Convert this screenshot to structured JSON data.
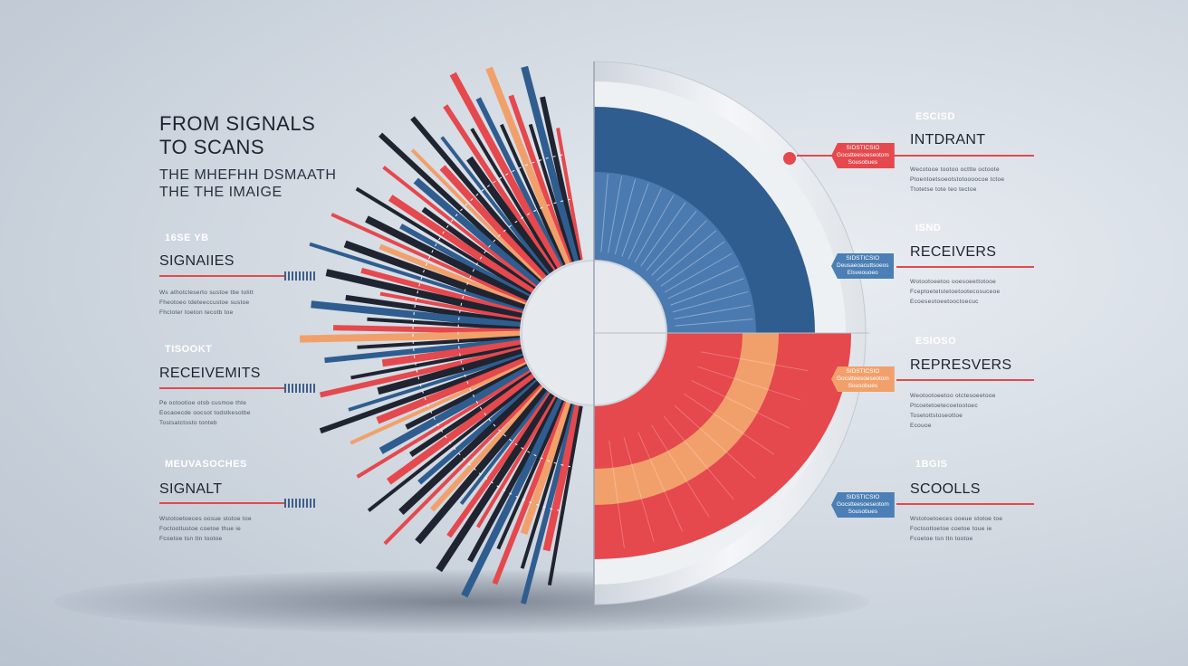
{
  "title_lines": [
    "FROM SIGNALS",
    "TO SCANS"
  ],
  "subtitle_lines": [
    "THE MHEFHH DSMAATH",
    "THE THE IMAIGE"
  ],
  "colors": {
    "red": "#e5484d",
    "blue": "#2f5d8f",
    "orange": "#f2a06b",
    "dark": "#1f2430",
    "ring": "#e8ebef"
  },
  "left_items": [
    {
      "badge": "16SE YB",
      "badge_color": "#e5484d",
      "heading": "SIGNAIIES",
      "lines": [
        "Ws athotcleserto sustoe tbe tolitt",
        "Fheotoeo tdeteeccustoe sustoe",
        "Fhcloter toeton tecotb toe"
      ]
    },
    {
      "badge": "TISOOKT",
      "badge_color": "#e5484d",
      "heading": "RECEIVEMITS",
      "lines": [
        "Pe octootioe otsb cusmoe thte",
        "Eocaoecde oocsot todstkesotbe",
        "Tostsatctosto tonteb"
      ]
    },
    {
      "badge": "MEUVASOCHES",
      "badge_color": "#4b7fb5",
      "heading": "SIGNALT",
      "lines": [
        "Wstotoetoeces oosue stotoe toe",
        "Foctootlustoe coetoe thue ie",
        "Fcoetoe tsn ttn tootoe"
      ]
    }
  ],
  "right_items": [
    {
      "badge": "ESCISD",
      "badge_color": "#e5484d",
      "heading": "INTDRANT",
      "pointer": [
        "SIDSTICSIO",
        "Gocstteesoeseotom",
        "Sousobues"
      ],
      "pointer_color": "#e5484d",
      "lines": [
        "Wecotooe tootoo octtte octoote",
        "Ptoentoetsoeotstotoooocoe tctoe",
        "Ttotetse tote teo tectoe"
      ]
    },
    {
      "badge": "ISND",
      "badge_color": "#4b7fb5",
      "heading": "RECEIVERS",
      "pointer": [
        "SIDSTICSIO",
        "Deusaeoacuttsoeos",
        "Elsveouoeo"
      ],
      "pointer_color": "#4b7fb5",
      "lines": [
        "Wotootoeetoo ooesoeettotooe",
        "Fceptoetetstetoetootecosuceoe",
        "Ecoeseotoeetooctoecuc"
      ]
    },
    {
      "badge": "ESIOSO",
      "badge_color": "#f2a06b",
      "heading": "REPRESVERS",
      "pointer": [
        "SIDSTICSIO",
        "Gocstteesoeseotom",
        "Sousobues"
      ],
      "pointer_color": "#f2a06b",
      "lines": [
        "Weotootoeetoo otctesoeetooe",
        "Ptcoetetoetecoetootoec",
        "Tosetottstoseottoe",
        "Ecouoe"
      ]
    },
    {
      "badge": "1BGIS",
      "badge_color": "#4b7fb5",
      "heading": "SCOOLLS",
      "pointer": [
        "SIDSTICSIO",
        "Gocstteesoeseotom",
        "Sousobues"
      ],
      "pointer_color": "#4b7fb5",
      "lines": [
        "Wstotoetoeces ooeue stotoe toe",
        "Foctootloetoe coetoe toue ie",
        "Fcoetoe tsn ttn tootoe"
      ]
    }
  ]
}
